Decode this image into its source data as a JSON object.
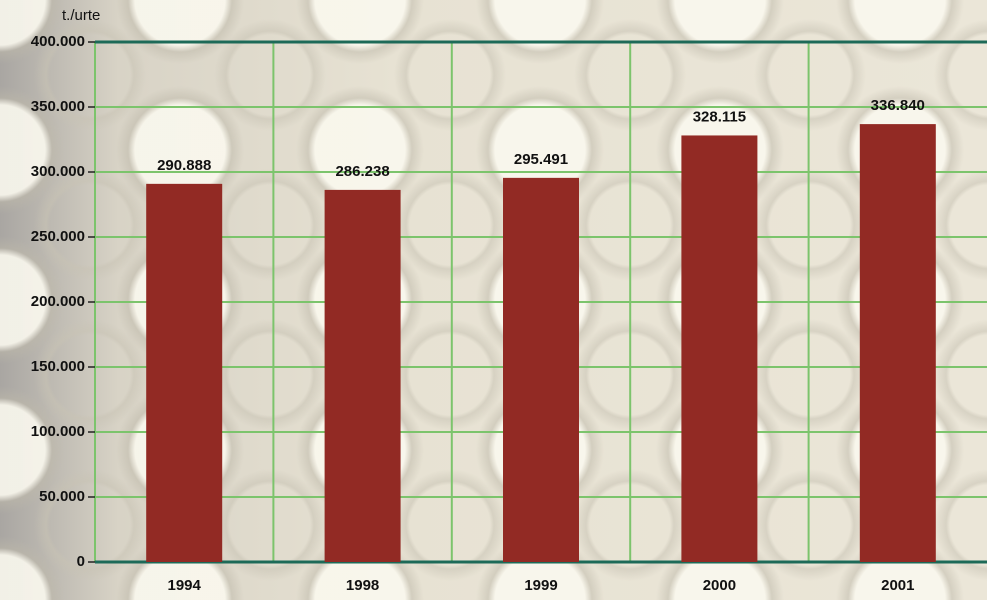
{
  "chart_data": {
    "type": "bar",
    "y_axis_label": "t./urte",
    "categories": [
      "1994",
      "1998",
      "1999",
      "2000",
      "2001"
    ],
    "values": [
      290888,
      286238,
      295491,
      328115,
      336840
    ],
    "value_labels": [
      "290.888",
      "286.238",
      "295.491",
      "328.115",
      "336.840"
    ],
    "color": "#922a24",
    "ylim": [
      0,
      400000
    ],
    "yticks": [
      0,
      {
        "value": 50000,
        "label": "50.000"
      },
      {
        "value": 100000,
        "label": "100.000"
      },
      {
        "value": 150000,
        "label": "150.000"
      },
      {
        "value": 200000,
        "label": "200.000"
      },
      {
        "value": 250000,
        "label": "250.000"
      },
      {
        "value": 300000,
        "label": "300.000"
      },
      {
        "value": 350000,
        "label": "350.000"
      },
      {
        "value": 400000,
        "label": "400.000"
      }
    ],
    "grid": true,
    "grid_color": "#7cc46c",
    "axis_color": "#1d6a58"
  }
}
